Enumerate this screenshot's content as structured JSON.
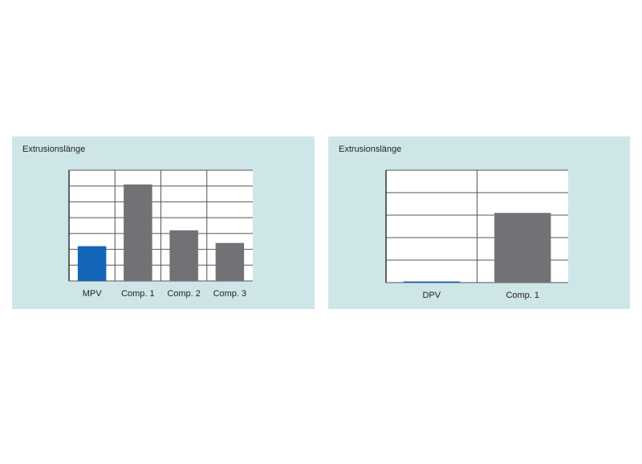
{
  "chart_data": [
    {
      "type": "bar",
      "title": "Extrusionslänge",
      "categories": [
        "MPV",
        "Comp. 1",
        "Comp. 2",
        "Comp. 3"
      ],
      "values": [
        2.2,
        6.1,
        3.2,
        2.4
      ],
      "colors": [
        "#1565b8",
        "#727276",
        "#727276",
        "#727276"
      ],
      "ylim": [
        0,
        7
      ],
      "yticks": [
        0,
        1,
        2,
        3,
        4,
        5,
        6,
        7
      ],
      "grid": true
    },
    {
      "type": "bar",
      "title": "Extrusionslänge",
      "categories": [
        "DPV",
        "Comp. 1"
      ],
      "values": [
        0.05,
        3.1
      ],
      "colors": [
        "#1565b8",
        "#727276"
      ],
      "ylim": [
        0,
        5
      ],
      "yticks": [
        0,
        1,
        2,
        3,
        4,
        5
      ],
      "grid": true
    }
  ]
}
